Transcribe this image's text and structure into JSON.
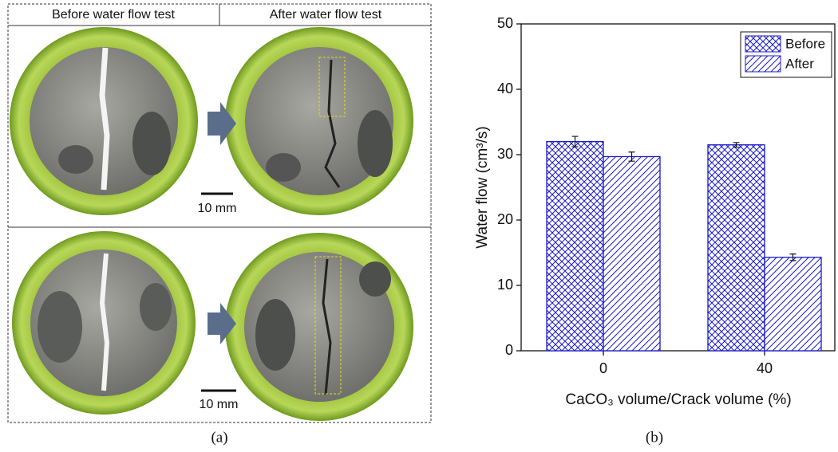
{
  "chart_data": {
    "type": "bar",
    "y_label": "Water flow (cm³/s)",
    "x_label": "CaCO₃ volume/Crack volume (%)",
    "categories": [
      "0",
      "40"
    ],
    "series": [
      {
        "name": "Before",
        "color": "#1a1acc",
        "hatch": "cross",
        "values": [
          32,
          31.5
        ],
        "errors": [
          0.8,
          0.35
        ]
      },
      {
        "name": "After",
        "color": "#1a1acc",
        "hatch": "diagonal",
        "values": [
          29.7,
          14.3
        ],
        "errors": [
          0.7,
          0.5
        ]
      }
    ],
    "ylim": [
      0,
      50
    ],
    "yticks": [
      0,
      10,
      20,
      30,
      40,
      50
    ],
    "legend": "upper right",
    "caption": "(b)"
  },
  "panel_a": {
    "headers": [
      "Before water flow test",
      "After water flow test"
    ],
    "scale_labels": [
      "10 mm",
      "10 mm"
    ],
    "caption": "(a)"
  }
}
